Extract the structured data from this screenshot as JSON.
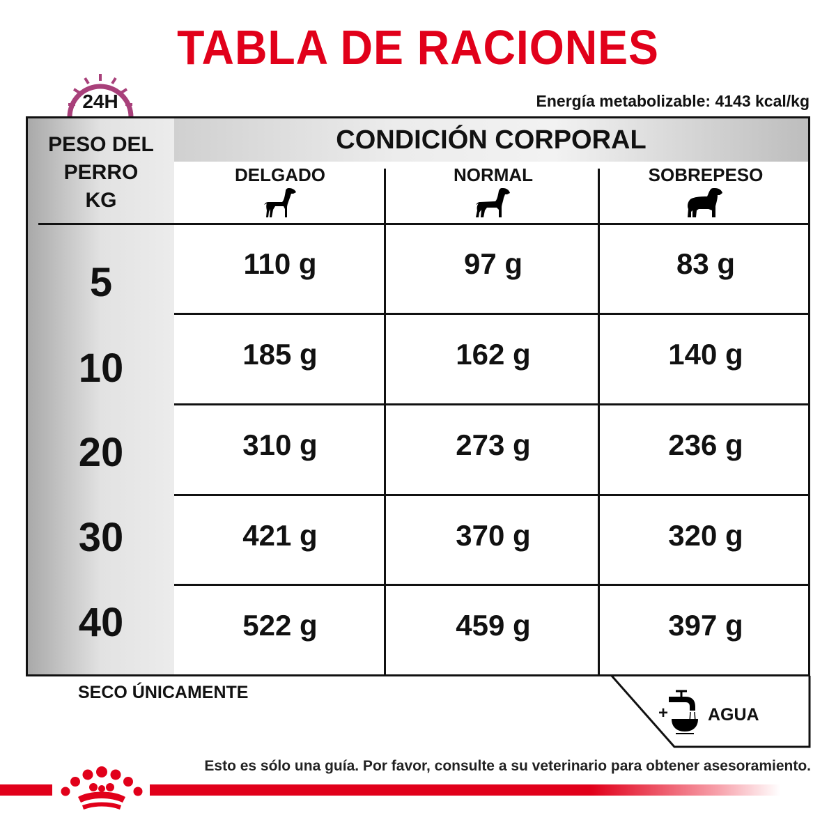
{
  "title": "TABLA DE RACIONES",
  "badge": {
    "label": "24H",
    "color": "#a8407a"
  },
  "energy": "Energía metabolizable: 4143 kcal/kg",
  "table": {
    "weight_header": [
      "PESO DEL",
      "PERRO",
      "KG"
    ],
    "group_header": "CONDICIÓN CORPORAL",
    "columns": [
      {
        "label": "DELGADO",
        "icon": "thin-dog-icon"
      },
      {
        "label": "NORMAL",
        "icon": "normal-dog-icon"
      },
      {
        "label": "SOBREPESO",
        "icon": "overweight-dog-icon"
      }
    ],
    "rows": [
      {
        "weight": "5",
        "values": [
          "110 g",
          "97 g",
          "83 g"
        ]
      },
      {
        "weight": "10",
        "values": [
          "185 g",
          "162 g",
          "140 g"
        ]
      },
      {
        "weight": "20",
        "values": [
          "310 g",
          "273 g",
          "236 g"
        ]
      },
      {
        "weight": "30",
        "values": [
          "421 g",
          "370 g",
          "320 g"
        ]
      },
      {
        "weight": "40",
        "values": [
          "522 g",
          "459 g",
          "397 g"
        ]
      }
    ]
  },
  "footer": {
    "dry_only": "SECO ÚNICAMENTE",
    "water_plus": "+",
    "water": "AGUA",
    "note": "Esto es sólo una guía. Por favor, consulte a su veterinario para obtener asesoramiento."
  },
  "colors": {
    "brand_red": "#e1001a",
    "text": "#111111"
  }
}
